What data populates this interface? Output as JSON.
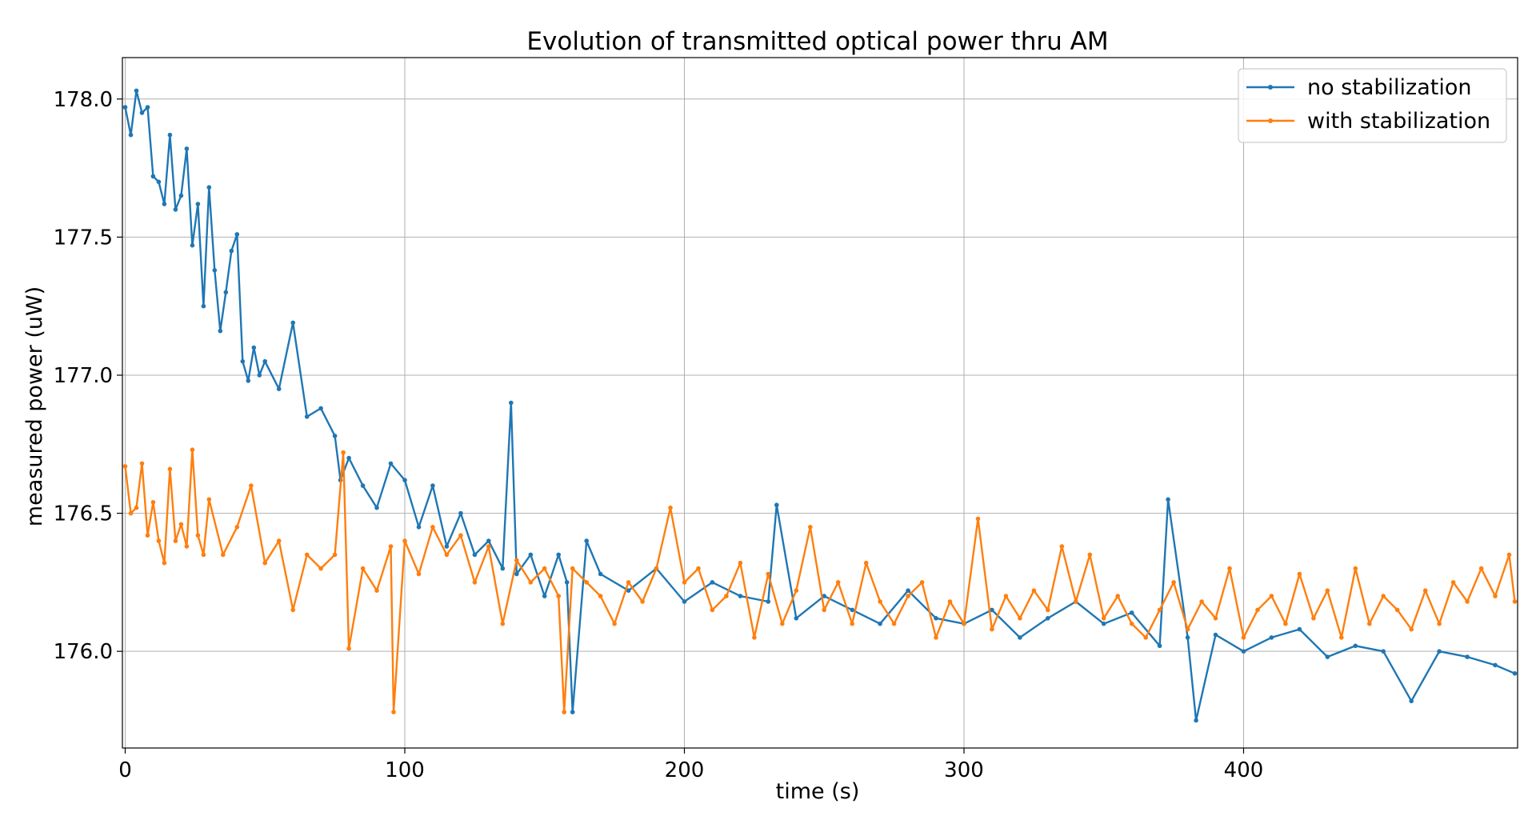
{
  "chart_data": {
    "type": "line",
    "title": "Evolution of transmitted optical power thru AM",
    "xlabel": "time (s)",
    "ylabel": "measured power (uW)",
    "xlim": [
      -1,
      498
    ],
    "ylim": [
      175.65,
      178.15
    ],
    "xticks": [
      0,
      100,
      200,
      300,
      400
    ],
    "xtick_labels": [
      "0",
      "100",
      "200",
      "300",
      "400"
    ],
    "yticks": [
      176.0,
      176.5,
      177.0,
      177.5,
      178.0
    ],
    "ytick_labels": [
      "176.0",
      "176.5",
      "177.0",
      "177.5",
      "178.0"
    ],
    "grid": true,
    "legend_position": "top-right",
    "marker": "dot",
    "series": [
      {
        "name": "no stabilization",
        "color": "#1f77b4",
        "x": [
          0,
          2,
          4,
          6,
          8,
          10,
          12,
          14,
          16,
          18,
          20,
          22,
          24,
          26,
          28,
          30,
          32,
          34,
          36,
          38,
          40,
          42,
          44,
          46,
          48,
          50,
          55,
          60,
          65,
          70,
          75,
          77,
          80,
          85,
          90,
          95,
          100,
          105,
          110,
          115,
          120,
          125,
          130,
          135,
          138,
          140,
          145,
          150,
          155,
          158,
          160,
          165,
          170,
          180,
          190,
          200,
          210,
          220,
          230,
          233,
          240,
          250,
          260,
          270,
          280,
          290,
          300,
          310,
          320,
          330,
          340,
          350,
          360,
          370,
          373,
          380,
          383,
          390,
          400,
          410,
          420,
          430,
          440,
          450,
          460,
          470,
          480,
          490,
          497
        ],
        "values": [
          177.97,
          177.87,
          178.03,
          177.95,
          177.97,
          177.72,
          177.7,
          177.62,
          177.87,
          177.6,
          177.65,
          177.82,
          177.47,
          177.62,
          177.25,
          177.68,
          177.38,
          177.16,
          177.3,
          177.45,
          177.51,
          177.05,
          176.98,
          177.1,
          177.0,
          177.05,
          176.95,
          177.19,
          176.85,
          176.88,
          176.78,
          176.62,
          176.7,
          176.6,
          176.52,
          176.68,
          176.62,
          176.45,
          176.6,
          176.38,
          176.5,
          176.35,
          176.4,
          176.3,
          176.9,
          176.28,
          176.35,
          176.2,
          176.35,
          176.25,
          175.78,
          176.4,
          176.28,
          176.22,
          176.3,
          176.18,
          176.25,
          176.2,
          176.18,
          176.53,
          176.12,
          176.2,
          176.15,
          176.1,
          176.22,
          176.12,
          176.1,
          176.15,
          176.05,
          176.12,
          176.18,
          176.1,
          176.14,
          176.02,
          176.55,
          176.05,
          175.75,
          176.06,
          176.0,
          176.05,
          176.08,
          175.98,
          176.02,
          176.0,
          175.82,
          176.0,
          175.98,
          175.95,
          175.92
        ]
      },
      {
        "name": "with stabilization",
        "color": "#ff7f0e",
        "x": [
          0,
          2,
          4,
          6,
          8,
          10,
          12,
          14,
          16,
          18,
          20,
          22,
          24,
          26,
          28,
          30,
          35,
          40,
          45,
          50,
          55,
          60,
          65,
          70,
          75,
          78,
          80,
          85,
          90,
          95,
          96,
          100,
          105,
          110,
          115,
          120,
          125,
          130,
          135,
          140,
          145,
          150,
          155,
          157,
          160,
          165,
          170,
          175,
          180,
          185,
          190,
          195,
          200,
          205,
          210,
          215,
          220,
          225,
          230,
          235,
          240,
          245,
          250,
          255,
          260,
          265,
          270,
          275,
          280,
          285,
          290,
          295,
          300,
          305,
          310,
          315,
          320,
          325,
          330,
          335,
          340,
          345,
          350,
          355,
          360,
          365,
          370,
          375,
          380,
          385,
          390,
          395,
          400,
          405,
          410,
          415,
          420,
          425,
          430,
          435,
          440,
          445,
          450,
          455,
          460,
          465,
          470,
          475,
          480,
          485,
          490,
          495,
          497
        ],
        "values": [
          176.67,
          176.5,
          176.52,
          176.68,
          176.42,
          176.54,
          176.4,
          176.32,
          176.66,
          176.4,
          176.46,
          176.38,
          176.73,
          176.42,
          176.35,
          176.55,
          176.35,
          176.45,
          176.6,
          176.32,
          176.4,
          176.15,
          176.35,
          176.3,
          176.35,
          176.72,
          176.01,
          176.3,
          176.22,
          176.38,
          175.78,
          176.4,
          176.28,
          176.45,
          176.35,
          176.42,
          176.25,
          176.38,
          176.1,
          176.33,
          176.25,
          176.3,
          176.2,
          175.78,
          176.3,
          176.25,
          176.2,
          176.1,
          176.25,
          176.18,
          176.3,
          176.52,
          176.25,
          176.3,
          176.15,
          176.2,
          176.32,
          176.05,
          176.28,
          176.1,
          176.22,
          176.45,
          176.15,
          176.25,
          176.1,
          176.32,
          176.18,
          176.1,
          176.2,
          176.25,
          176.05,
          176.18,
          176.1,
          176.48,
          176.08,
          176.2,
          176.12,
          176.22,
          176.15,
          176.38,
          176.18,
          176.35,
          176.12,
          176.2,
          176.1,
          176.05,
          176.15,
          176.25,
          176.08,
          176.18,
          176.12,
          176.3,
          176.05,
          176.15,
          176.2,
          176.1,
          176.28,
          176.12,
          176.22,
          176.05,
          176.3,
          176.1,
          176.2,
          176.15,
          176.08,
          176.22,
          176.1,
          176.25,
          176.18,
          176.3,
          176.2,
          176.35,
          176.18
        ]
      }
    ]
  }
}
